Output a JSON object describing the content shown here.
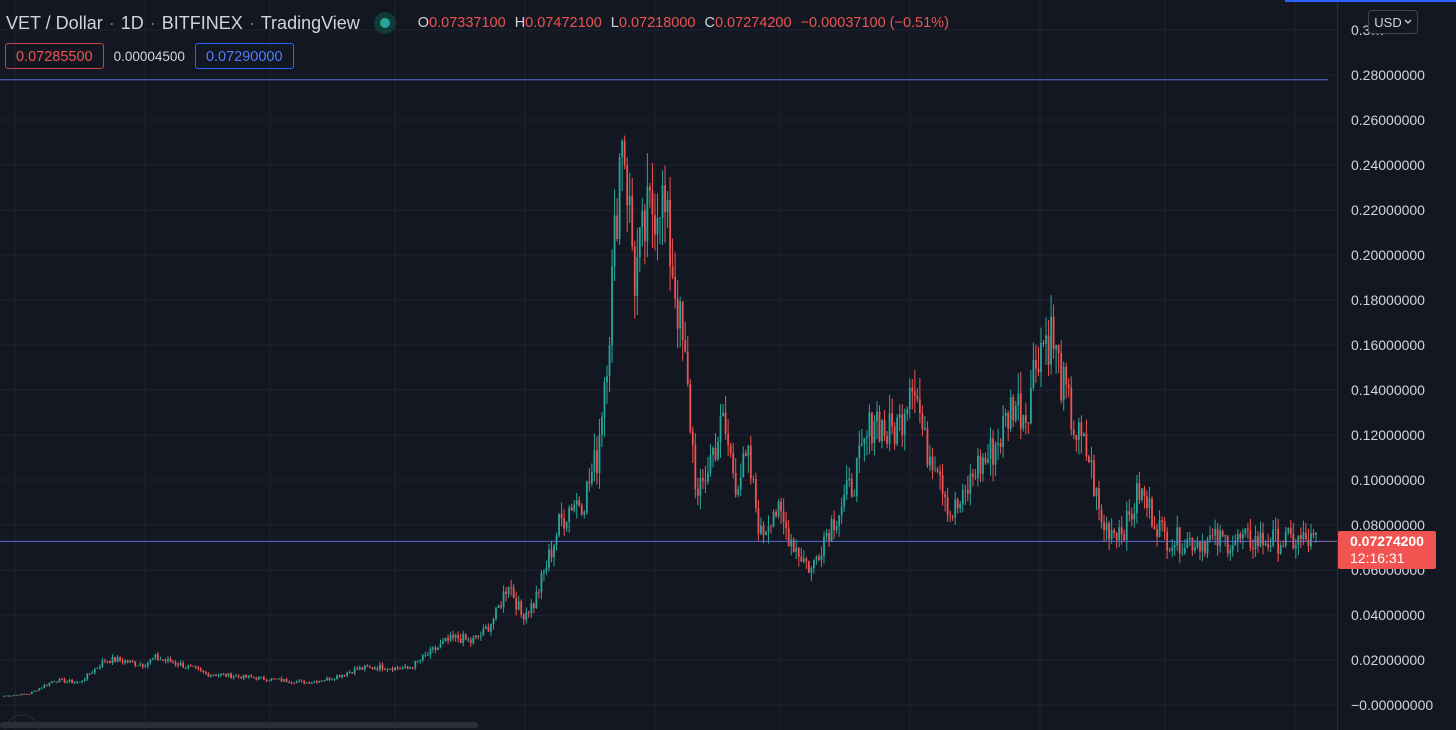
{
  "header": {
    "symbol": "VET / Dollar",
    "interval": "1D",
    "exchange": "BITFINEX",
    "source": "TradingView",
    "status_color": "#26a69a"
  },
  "ohlc": {
    "open_label": "O",
    "open": "0.07337100",
    "high_label": "H",
    "high": "0.07472100",
    "low_label": "L",
    "low": "0.07218000",
    "close_label": "C",
    "close": "0.07274200",
    "change": "−0.00037100 (−0.51%)"
  },
  "quote": {
    "bid": "0.07285500",
    "spread": "0.00004500",
    "ask": "0.07290000"
  },
  "currency": {
    "label": "USD",
    "icon": "chevron-down-icon"
  },
  "last_price": {
    "price": "0.07274200",
    "countdown": "12:16:31"
  },
  "colors": {
    "background": "#131722",
    "up": "#26a69a",
    "down": "#ef5350",
    "grid": "#1f2330",
    "horizontal_line": "#5b6bd1",
    "text": "#d1d4dc"
  },
  "chart_data": {
    "type": "candlestick",
    "symbol": "VET / Dollar",
    "interval": "1D",
    "y_axis_ticks": [
      "0.3…",
      "0.28000000",
      "0.26000000",
      "0.24000000",
      "0.22000000",
      "0.20000000",
      "0.18000000",
      "0.16000000",
      "0.14000000",
      "0.12000000",
      "0.10000000",
      "0.08000000",
      "0.06000000",
      "0.04000000",
      "0.02000000",
      "−0.00000000"
    ],
    "y_tick_values": [
      0.3,
      0.28,
      0.26,
      0.24,
      0.22,
      0.2,
      0.18,
      0.16,
      0.14,
      0.12,
      0.1,
      0.08,
      0.06,
      0.04,
      0.02,
      0.0
    ],
    "ylim": [
      -0.002,
      0.305
    ],
    "horizontal_lines": [
      0.2779,
      0.0727
    ],
    "grid": true,
    "series": [
      {
        "name": "",
        "x_index": [
          0,
          10,
          20,
          30,
          40,
          45,
          55,
          60,
          70,
          80,
          90,
          100,
          110,
          120,
          130,
          140,
          150,
          160,
          170,
          175,
          180,
          185,
          190,
          195,
          200,
          205,
          210,
          215,
          220,
          225,
          230,
          235,
          240,
          245,
          250,
          255,
          260,
          265,
          270,
          275,
          280,
          285,
          290,
          295,
          300,
          305,
          310,
          315,
          320,
          325,
          330,
          335,
          340,
          345,
          350,
          355,
          360,
          365,
          370,
          375,
          380,
          385,
          390,
          395,
          400,
          405,
          410,
          415,
          420,
          425,
          430,
          435,
          440,
          445,
          450,
          455,
          460,
          465,
          470,
          475,
          480,
          485,
          490,
          495,
          500,
          505,
          510,
          515,
          520
        ],
        "close": [
          0.004,
          0.005,
          0.011,
          0.01,
          0.02,
          0.02,
          0.018,
          0.021,
          0.018,
          0.014,
          0.013,
          0.012,
          0.011,
          0.01,
          0.012,
          0.016,
          0.017,
          0.016,
          0.024,
          0.028,
          0.03,
          0.028,
          0.032,
          0.04,
          0.055,
          0.04,
          0.045,
          0.062,
          0.08,
          0.09,
          0.092,
          0.11,
          0.17,
          0.26,
          0.19,
          0.215,
          0.23,
          0.195,
          0.15,
          0.09,
          0.11,
          0.125,
          0.1,
          0.108,
          0.075,
          0.088,
          0.078,
          0.068,
          0.06,
          0.075,
          0.085,
          0.095,
          0.11,
          0.13,
          0.12,
          0.125,
          0.15,
          0.115,
          0.11,
          0.085,
          0.09,
          0.105,
          0.11,
          0.12,
          0.135,
          0.13,
          0.16,
          0.165,
          0.14,
          0.12,
          0.11,
          0.08,
          0.078,
          0.08,
          0.095,
          0.085,
          0.075,
          0.073,
          0.073,
          0.073,
          0.073,
          0.073,
          0.073,
          0.073,
          0.073,
          0.073,
          0.073,
          0.073,
          0.0727
        ]
      }
    ]
  }
}
